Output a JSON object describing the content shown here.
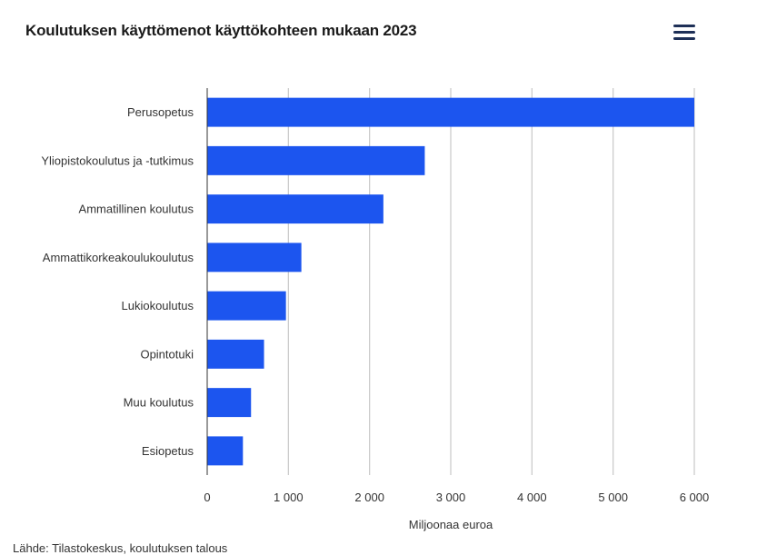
{
  "header": {
    "title": "Koulutuksen käyttömenot käyttökohteen mukaan 2023",
    "menu_icon": "hamburger-menu-icon"
  },
  "footer": {
    "source": "Lähde: Tilastokeskus, koulutuksen talous"
  },
  "colors": {
    "bar": "#1c55ef",
    "grid": "#c8c8c8",
    "axis": "#333333",
    "menu": "#1e3057"
  },
  "chart_data": {
    "type": "bar",
    "orientation": "horizontal",
    "title": "Koulutuksen käyttömenot käyttökohteen mukaan 2023",
    "xlabel": "Miljoonaa euroa",
    "ylabel": "",
    "xlim": [
      0,
      6000
    ],
    "xticks": [
      0,
      1000,
      2000,
      3000,
      4000,
      5000,
      6000
    ],
    "xtick_labels": [
      "0",
      "1 000",
      "2 000",
      "3 000",
      "4 000",
      "5 000",
      "6 000"
    ],
    "grid": true,
    "categories": [
      "Perusopetus",
      "Yliopistokoulutus ja -tutkimus",
      "Ammatillinen koulutus",
      "Ammattikorkeakoulukoulutus",
      "Lukiokoulutus",
      "Opintotuki",
      "Muu koulutus",
      "Esiopetus"
    ],
    "values": [
      6000,
      2680,
      2170,
      1160,
      970,
      700,
      540,
      440
    ]
  }
}
